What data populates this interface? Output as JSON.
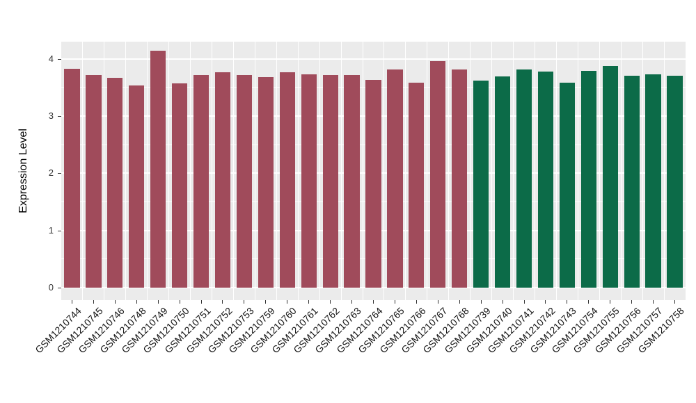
{
  "chart_data": {
    "type": "bar",
    "title": "",
    "xlabel": "",
    "ylabel": "Expression Level",
    "ylim": [
      0,
      4.3
    ],
    "yticks": [
      0,
      1,
      2,
      3,
      4
    ],
    "grid": true,
    "legend": false,
    "panel_bg": "#EBEBEB",
    "grid_color": "#FFFFFF",
    "categories": [
      "GSM1210744",
      "GSM1210745",
      "GSM1210746",
      "GSM1210748",
      "GSM1210749",
      "GSM1210750",
      "GSM1210751",
      "GSM1210752",
      "GSM1210753",
      "GSM1210759",
      "GSM1210760",
      "GSM1210761",
      "GSM1210762",
      "GSM1210763",
      "GSM1210764",
      "GSM1210765",
      "GSM1210766",
      "GSM1210767",
      "GSM1210768",
      "GSM1210739",
      "GSM1210740",
      "GSM1210741",
      "GSM1210742",
      "GSM1210743",
      "GSM1210754",
      "GSM1210755",
      "GSM1210756",
      "GSM1210757",
      "GSM1210758"
    ],
    "values": [
      3.83,
      3.72,
      3.67,
      3.53,
      4.14,
      3.57,
      3.72,
      3.77,
      3.72,
      3.68,
      3.77,
      3.73,
      3.72,
      3.72,
      3.63,
      3.81,
      3.58,
      3.96,
      3.81,
      3.62,
      3.69,
      3.82,
      3.78,
      3.58,
      3.79,
      3.88,
      3.71,
      3.73,
      3.7
    ],
    "bar_group_index": [
      0,
      0,
      0,
      0,
      0,
      0,
      0,
      0,
      0,
      0,
      0,
      0,
      0,
      0,
      0,
      0,
      0,
      0,
      0,
      1,
      1,
      1,
      1,
      1,
      1,
      1,
      1,
      1,
      1
    ],
    "group_colors": [
      "#A04B5B",
      "#0C6B48"
    ]
  }
}
